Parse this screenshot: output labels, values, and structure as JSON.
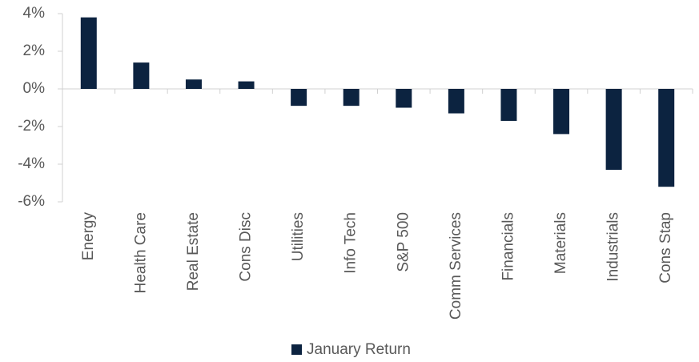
{
  "chart_data": {
    "type": "bar",
    "categories": [
      "Energy",
      "Health Care",
      "Real Estate",
      "Cons Disc",
      "Utilities",
      "Info Tech",
      "S&P 500",
      "Comm Services",
      "Financials",
      "Materials",
      "Industrials",
      "Cons Stap"
    ],
    "series": [
      {
        "name": "January Return",
        "color": "#0c2340",
        "values": [
          3.8,
          1.4,
          0.5,
          0.4,
          -0.9,
          -0.9,
          -1.0,
          -1.3,
          -1.7,
          -2.4,
          -4.3,
          -5.2
        ]
      }
    ],
    "ylim": [
      -6,
      4
    ],
    "yticks": [
      {
        "value": -6,
        "label": "-6%"
      },
      {
        "value": -4,
        "label": "-4%"
      },
      {
        "value": -2,
        "label": "-2%"
      },
      {
        "value": 0,
        "label": "0%"
      },
      {
        "value": 2,
        "label": "2%"
      },
      {
        "value": 4,
        "label": "4%"
      }
    ],
    "legend": "bottom"
  }
}
